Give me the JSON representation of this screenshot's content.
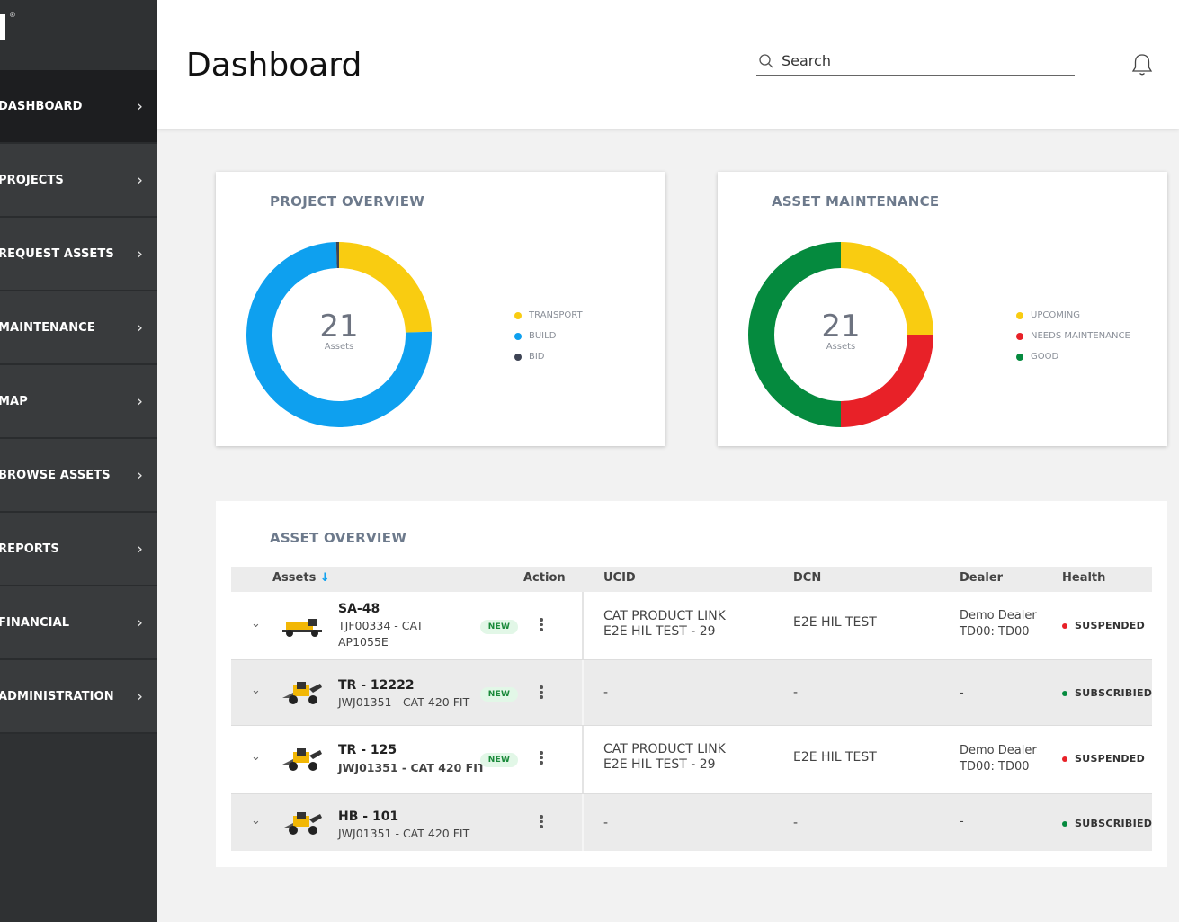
{
  "sidebar": {
    "reg_mark": "®",
    "items": [
      {
        "label": "DASHBOARD"
      },
      {
        "label": "PROJECTS"
      },
      {
        "label": "REQUEST ASSETS"
      },
      {
        "label": "MAINTENANCE"
      },
      {
        "label": "MAP"
      },
      {
        "label": "BROWSE ASSETS"
      },
      {
        "label": "REPORTS"
      },
      {
        "label": "FINANCIAL"
      },
      {
        "label": "ADMINISTRATION"
      }
    ]
  },
  "header": {
    "title": "Dashboard",
    "search_placeholder": "Search"
  },
  "project_overview": {
    "title": "PROJECT OVERVIEW",
    "center_value": "21",
    "center_unit": "Assets",
    "legend": [
      {
        "label": "TRANSPORT",
        "color": "#f9cc11"
      },
      {
        "label": "BUILD",
        "color": "#0ea0ef"
      },
      {
        "label": "BID",
        "color": "#3e4454"
      }
    ]
  },
  "asset_maintenance": {
    "title": "ASSET MAINTENANCE",
    "center_value": "21",
    "center_unit": "Assets",
    "legend": [
      {
        "label": "UPCOMING",
        "color": "#f9cc11"
      },
      {
        "label": "NEEDS MAINTENANCE",
        "color": "#e82128"
      },
      {
        "label": "GOOD",
        "color": "#058a3e"
      }
    ]
  },
  "chart_data": [
    {
      "type": "pie",
      "title": "PROJECT OVERVIEW",
      "categories": [
        "TRANSPORT",
        "BUILD",
        "BID"
      ],
      "values": [
        0.245,
        0.75,
        0.005
      ],
      "colors": [
        "#f9cc11",
        "#0ea0ef",
        "#3e4454"
      ],
      "center_label": "21 Assets"
    },
    {
      "type": "pie",
      "title": "ASSET MAINTENANCE",
      "categories": [
        "UPCOMING",
        "NEEDS MAINTENANCE",
        "GOOD"
      ],
      "values": [
        0.25,
        0.25,
        0.5
      ],
      "colors": [
        "#f9cc11",
        "#e82128",
        "#058a3e"
      ],
      "center_label": "21 Assets"
    }
  ],
  "asset_overview": {
    "title": "ASSET OVERVIEW",
    "columns": {
      "assets": "Assets",
      "sort_arrow": "↓",
      "action": "Action",
      "ucid": "UCID",
      "dcn": "DCN",
      "dealer": "Dealer",
      "health": "Health"
    },
    "rows": [
      {
        "name": "SA-48",
        "sub1": "TJF00334 - CAT",
        "sub2": "AP1055E",
        "badge": "NEW",
        "ucid1": "CAT PRODUCT LINK",
        "ucid2": "E2E HIL TEST - 29",
        "dcn": "E2E HIL TEST",
        "dealer1": "Demo Dealer",
        "dealer2": "TD00: TD00",
        "health": "SUSPENDED",
        "health_color": "#e82128"
      },
      {
        "name": "TR - 12222",
        "sub1": "JWJ01351 - CAT 420 FIT",
        "badge": "NEW",
        "ucid1": "-",
        "dcn": "-",
        "dealer1": "-",
        "health": "SUBSCRIBIED",
        "health_color": "#058a3e"
      },
      {
        "name": "TR - 125",
        "sub1": "JWJ01351 - CAT 420 FIT",
        "badge": "NEW",
        "ucid1": "CAT PRODUCT LINK",
        "ucid2": "E2E HIL TEST - 29",
        "dcn": "E2E HIL TEST",
        "dealer1": "Demo Dealer",
        "dealer2": "TD00: TD00",
        "health": "SUSPENDED",
        "health_color": "#e82128"
      },
      {
        "name": "HB - 101",
        "sub1": "JWJ01351 - CAT 420 FIT",
        "ucid1": "-",
        "dcn": "-",
        "dealer1": "-",
        "health": "SUBSCRIBIED",
        "health_color": "#058a3e"
      }
    ]
  }
}
